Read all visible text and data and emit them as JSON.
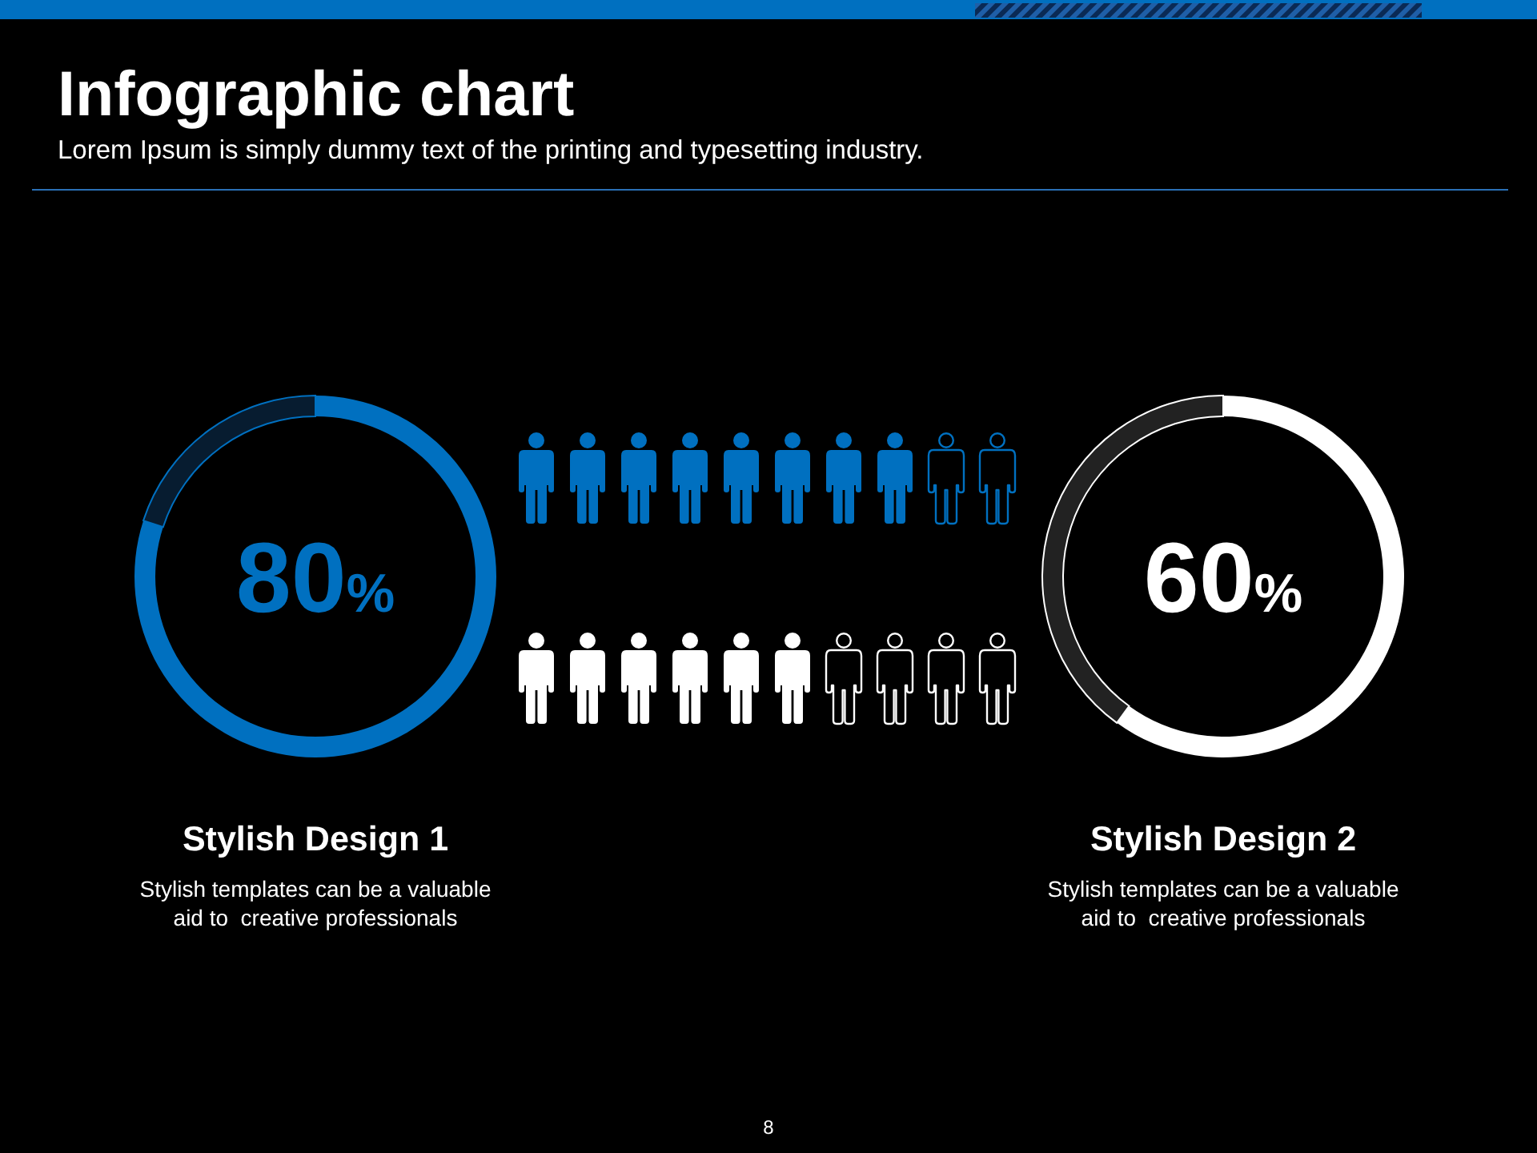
{
  "chart_data": [
    {
      "type": "other",
      "title": "Infographic chart",
      "subtitle": "Lorem Ipsum is simply dummy text of the printing and typesetting industry.",
      "annotations": [
        "8"
      ]
    },
    {
      "type": "donut",
      "title": "Stylish Design 1",
      "annotations": [
        "Stylish templates can be a valuable aid to  creative professionals"
      ],
      "categories": [
        null,
        null
      ],
      "values": [
        80,
        20
      ],
      "colors": [
        "#0070c0",
        "#071c30"
      ],
      "value_labels": [
        "80%",
        null
      ]
    },
    {
      "type": "donut",
      "title": "Stylish Design 2",
      "annotations": [
        "Stylish templates can be a valuable aid to  creative professionals"
      ],
      "categories": [
        null,
        null
      ],
      "values": [
        60,
        40
      ],
      "colors": [
        "#ffffff",
        "#222222"
      ],
      "value_labels": [
        "60%",
        null
      ]
    }
  ]
}
